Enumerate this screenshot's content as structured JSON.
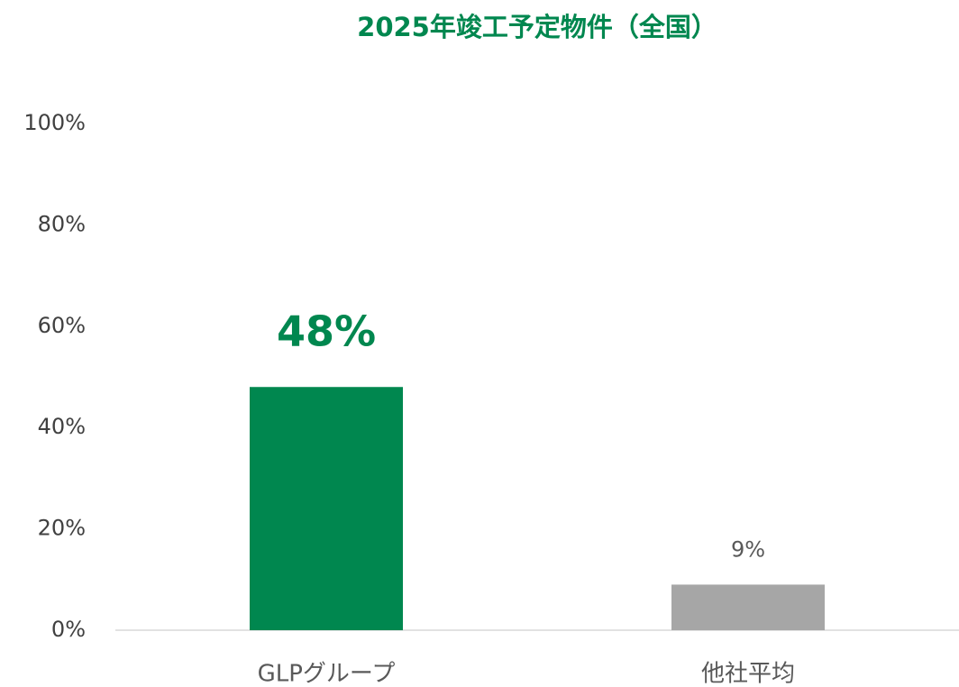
{
  "chart_data": {
    "type": "bar",
    "title": "2025年竣工予定物件（全国）",
    "categories": [
      "GLPグループ",
      "他社平均"
    ],
    "values": [
      48,
      9
    ],
    "value_labels": [
      "48%",
      "9%"
    ],
    "colors": [
      "#00874f",
      "#a6a6a6"
    ],
    "value_label_colors": [
      "#00874f",
      "#595959"
    ],
    "ylim": [
      0,
      100
    ],
    "yticks": [
      {
        "value": 0,
        "label": "0%"
      },
      {
        "value": 20,
        "label": "20%"
      },
      {
        "value": 40,
        "label": "40%"
      },
      {
        "value": 60,
        "label": "60%"
      },
      {
        "value": 80,
        "label": "80%"
      },
      {
        "value": 100,
        "label": "100%"
      }
    ],
    "grid": false
  }
}
